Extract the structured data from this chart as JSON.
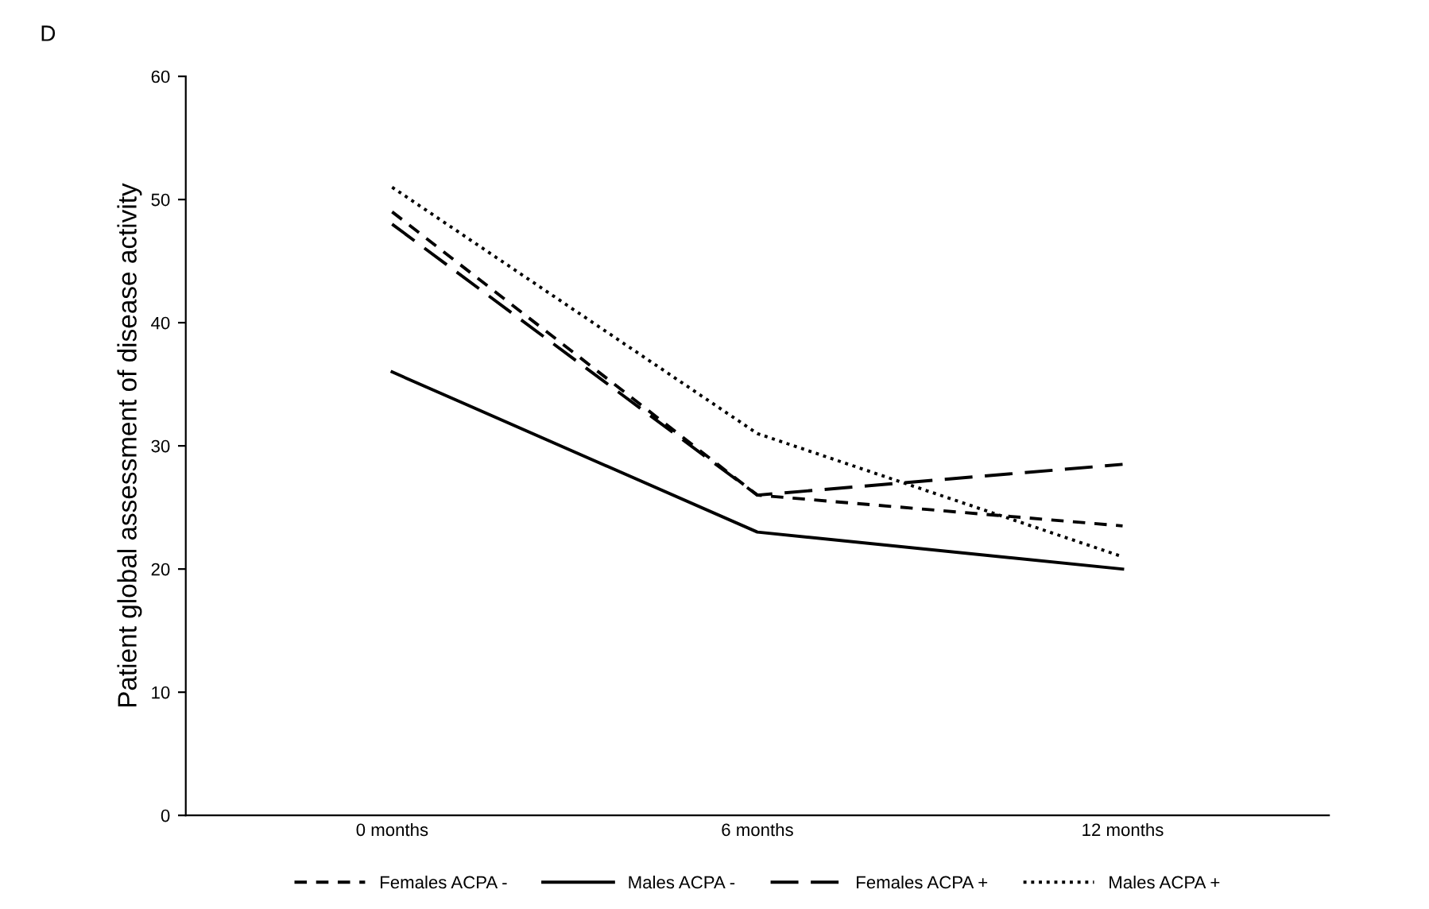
{
  "chart_data": {
    "type": "line",
    "ylabel": "Patient global assessment of disease activity",
    "annotations": [
      "D"
    ],
    "categories": [
      "0 months",
      "6 months",
      "12 months"
    ],
    "ylim": [
      0,
      60
    ],
    "yticks": [
      0,
      10,
      20,
      30,
      40,
      50,
      60
    ],
    "grid": false,
    "legend": "bottom",
    "marker": "none",
    "series": [
      {
        "name": "Females ACPA -",
        "color": "#000000",
        "line_style": "dashed",
        "values": [
          49,
          26,
          23.5
        ]
      },
      {
        "name": "Males ACPA -",
        "color": "#000000",
        "line_style": "solid",
        "values": [
          36,
          23,
          20
        ]
      },
      {
        "name": "Females ACPA +",
        "color": "#000000",
        "line_style": "longdash",
        "values": [
          48,
          26,
          28.5
        ]
      },
      {
        "name": "Males ACPA +",
        "color": "#000000",
        "line_style": "dotted",
        "values": [
          51,
          31,
          21
        ]
      }
    ]
  }
}
